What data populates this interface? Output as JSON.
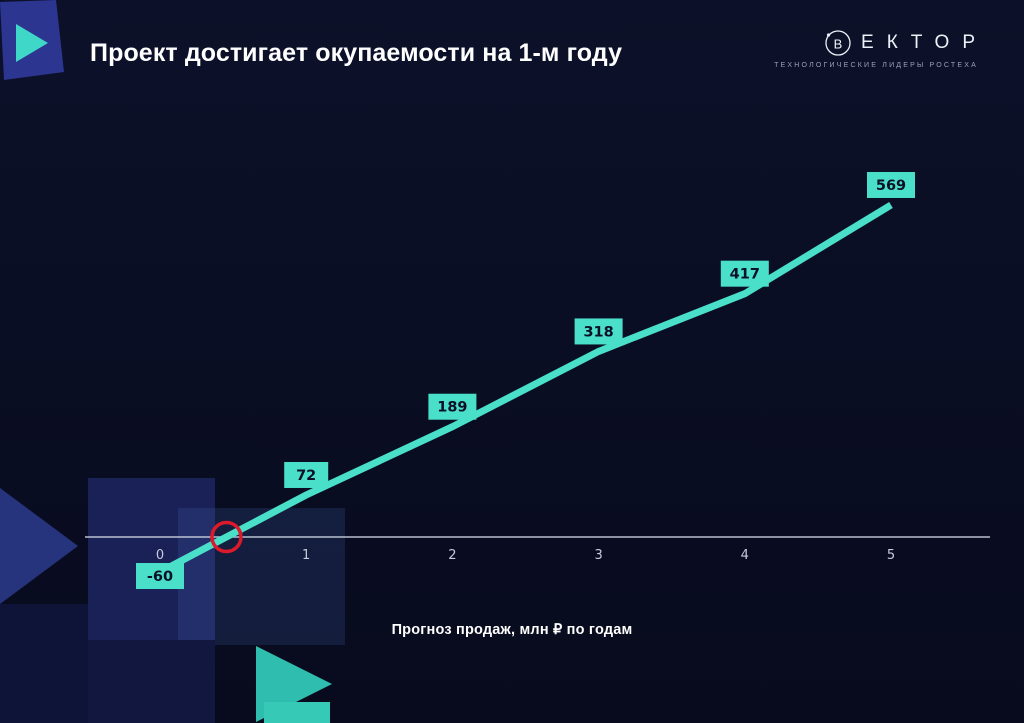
{
  "slide": {
    "title": "Проект достигает окупаемости на 1-м году",
    "caption": "Прогноз продаж, млн ₽ по годам"
  },
  "logo": {
    "mark_letter": "В",
    "letters": "ЕКТОР",
    "tagline": "ТЕХНОЛОГИЧЕСКИЕ ЛИДЕРЫ РОСТЕХА"
  },
  "chart_data": {
    "type": "line",
    "title": "Проект достигает окупаемости на 1-м году",
    "categories": [
      "0",
      "1",
      "2",
      "3",
      "4",
      "5"
    ],
    "values": [
      -60,
      72,
      189,
      318,
      417,
      569
    ],
    "xlabel": "Прогноз продаж, млн ₽ по годам",
    "ylabel": "",
    "ylim": [
      -100,
      650
    ],
    "grid": false,
    "legend": "none",
    "annotations": [
      "red circle marks break-even point where line crosses zero between year 0 and year 1"
    ],
    "colors": {
      "line": "#49dfc8",
      "label_bg": "#49dfc8",
      "label_text": "#0b1026",
      "axis": "#cdd3e0",
      "tick": "#c6ccdb",
      "marker": "#dd1a2a",
      "background": "#0a0e24"
    }
  }
}
